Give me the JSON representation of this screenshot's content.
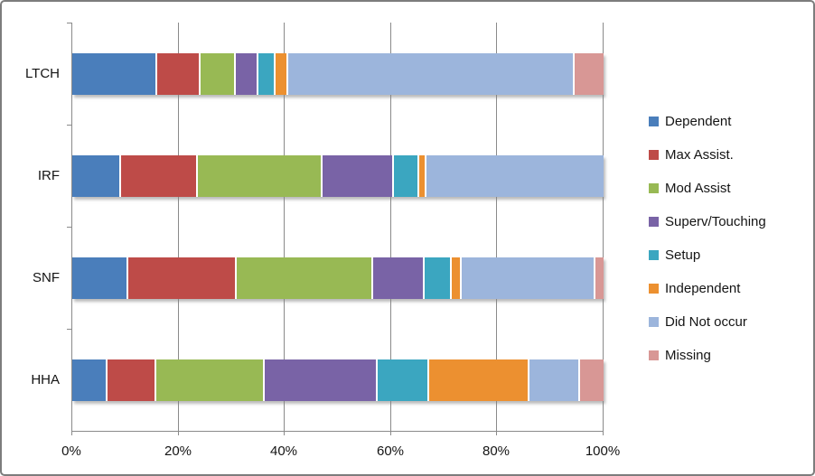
{
  "chart_data": {
    "type": "bar",
    "stacked": true,
    "orientation": "horizontal",
    "title": "",
    "categories": [
      "LTCH",
      "IRF",
      "SNF",
      "HHA"
    ],
    "series": [
      {
        "name": "Dependent",
        "color": "#4A7EBB",
        "values": [
          16,
          9,
          10.5,
          6.5
        ]
      },
      {
        "name": "Max Assist.",
        "color": "#BE4B48",
        "values": [
          8,
          14.5,
          20.5,
          9
        ]
      },
      {
        "name": "Mod Assist",
        "color": "#98B954",
        "values": [
          6.5,
          23.5,
          26,
          20.5
        ]
      },
      {
        "name": "Superv/Touching",
        "color": "#7963A6",
        "values": [
          4,
          13.5,
          9.5,
          21.5
        ]
      },
      {
        "name": "Setup",
        "color": "#3BA6C0",
        "values": [
          3,
          4.5,
          5,
          9.5
        ]
      },
      {
        "name": "Independent",
        "color": "#EC9030",
        "values": [
          2,
          1,
          1.5,
          19
        ]
      },
      {
        "name": "Did Not occur",
        "color": "#9CB5DC",
        "values": [
          55,
          34,
          25.5,
          9.5
        ]
      },
      {
        "name": "Missing",
        "color": "#D89795",
        "values": [
          5.5,
          0,
          1.5,
          4.5
        ]
      }
    ],
    "x_tick_labels": [
      "0%",
      "20%",
      "40%",
      "60%",
      "80%",
      "100%"
    ],
    "xlim": [
      0,
      100
    ],
    "grid": true,
    "legend_position": "right",
    "axis_color": "#8A8A8A",
    "text_color": "#141414"
  }
}
